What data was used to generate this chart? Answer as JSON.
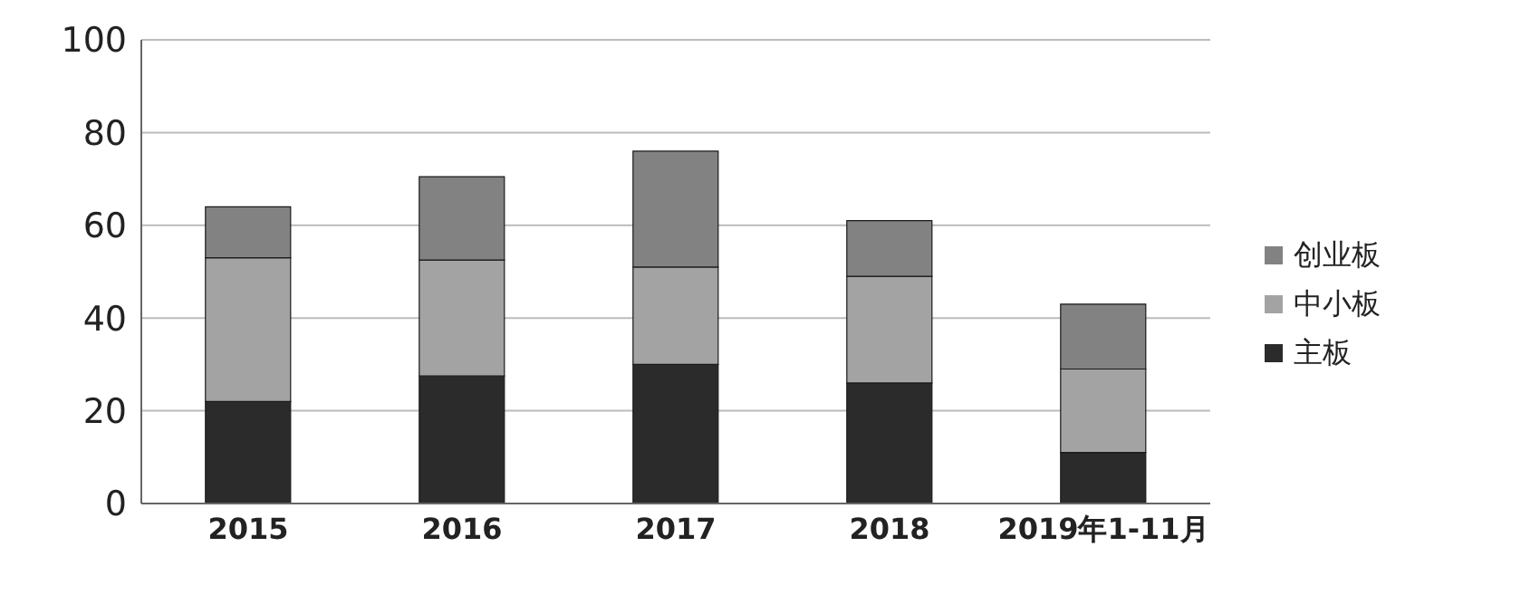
{
  "chart_data": {
    "type": "bar",
    "stacked": true,
    "categories": [
      "2015",
      "2016",
      "2017",
      "2018",
      "2019年1-11月"
    ],
    "series": [
      {
        "name": "主板",
        "color": "#2b2b2b",
        "values": [
          22,
          27.5,
          30,
          26,
          11
        ]
      },
      {
        "name": "中小板",
        "color": "#a3a3a3",
        "values": [
          31,
          25,
          21,
          23,
          18
        ]
      },
      {
        "name": "创业板",
        "color": "#828282",
        "values": [
          11,
          18,
          25,
          12,
          14
        ]
      }
    ],
    "ylim": [
      0,
      100
    ],
    "yticks": [
      0,
      20,
      40,
      60,
      80,
      100
    ],
    "grid": "y",
    "legend": "right"
  }
}
